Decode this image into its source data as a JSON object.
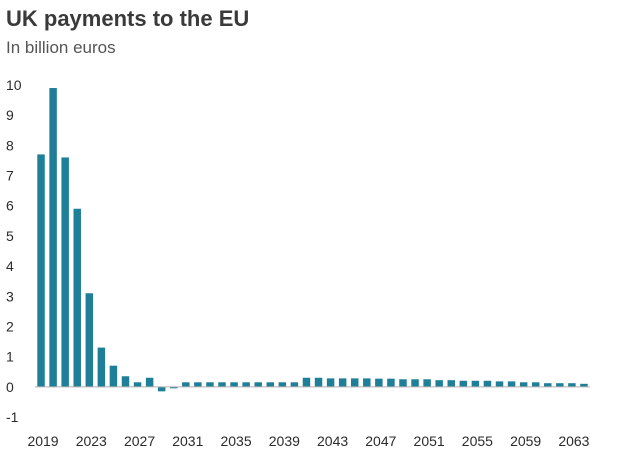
{
  "chart_data": {
    "type": "bar",
    "title": "UK payments to the EU",
    "subtitle": "In billion euros",
    "xlabel": "",
    "ylabel": "",
    "ylim": [
      -1,
      10
    ],
    "yticks": [
      -1,
      0,
      1,
      2,
      3,
      4,
      5,
      6,
      7,
      8,
      9,
      10
    ],
    "xticks": [
      2019,
      2023,
      2027,
      2031,
      2035,
      2039,
      2043,
      2047,
      2051,
      2055,
      2059,
      2063
    ],
    "categories": [
      2019,
      2020,
      2021,
      2022,
      2023,
      2024,
      2025,
      2026,
      2027,
      2028,
      2029,
      2030,
      2031,
      2032,
      2033,
      2034,
      2035,
      2036,
      2037,
      2038,
      2039,
      2040,
      2041,
      2042,
      2043,
      2044,
      2045,
      2046,
      2047,
      2048,
      2049,
      2050,
      2051,
      2052,
      2053,
      2054,
      2055,
      2056,
      2057,
      2058,
      2059,
      2060,
      2061,
      2062,
      2063,
      2064
    ],
    "values": [
      7.7,
      9.9,
      7.6,
      5.9,
      3.1,
      1.3,
      0.7,
      0.35,
      0.15,
      0.3,
      -0.15,
      -0.05,
      0.15,
      0.15,
      0.15,
      0.15,
      0.15,
      0.15,
      0.15,
      0.15,
      0.15,
      0.15,
      0.3,
      0.3,
      0.28,
      0.28,
      0.28,
      0.28,
      0.27,
      0.27,
      0.25,
      0.25,
      0.25,
      0.22,
      0.22,
      0.2,
      0.2,
      0.2,
      0.18,
      0.18,
      0.15,
      0.15,
      0.12,
      0.12,
      0.12,
      0.1
    ],
    "grid": false,
    "colors": {
      "bar": "#1f7f99",
      "zero_line": "#b0b0b0"
    }
  }
}
